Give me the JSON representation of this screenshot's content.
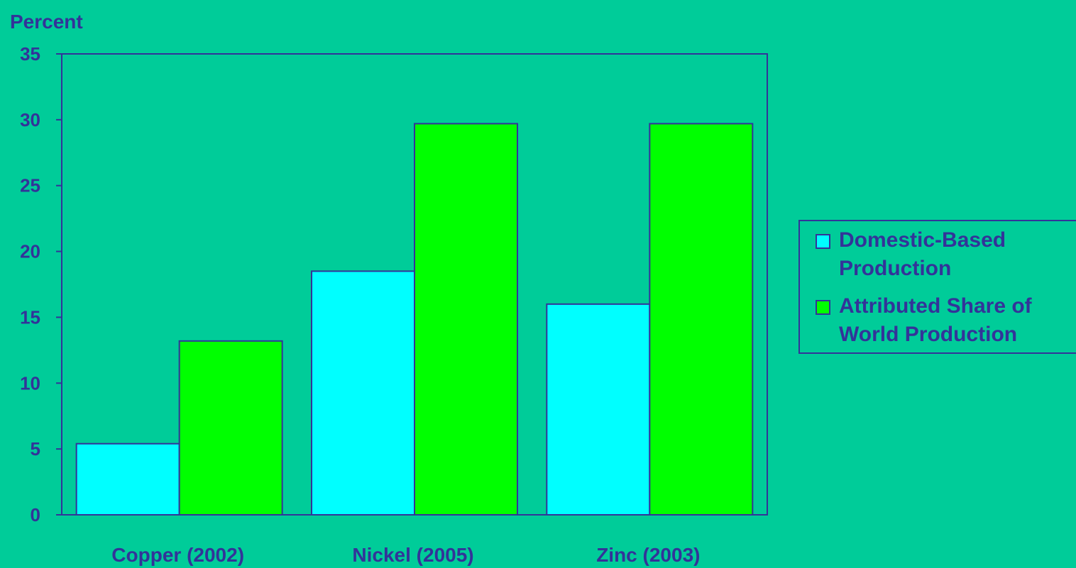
{
  "chart_data": {
    "type": "bar",
    "ylabel": "Percent",
    "xlabel": "",
    "ylim": [
      0,
      35
    ],
    "yticks": [
      "0",
      "5",
      "10",
      "15",
      "20",
      "25",
      "30",
      "35"
    ],
    "categories": [
      "Copper (2002)",
      "Nickel (2005)",
      "Zinc (2003)"
    ],
    "series": [
      {
        "name": "Domestic-Based Production",
        "values": [
          5.4,
          18.5,
          16.0
        ],
        "color": "#00FFFF"
      },
      {
        "name": "Attributed Share of World Production",
        "values": [
          13.2,
          29.7,
          29.7
        ],
        "color": "#00FF00"
      }
    ],
    "legend": {
      "position": "right",
      "entries": [
        {
          "lines": [
            "Domestic-Based",
            "Production"
          ],
          "color": "#00FFFF"
        },
        {
          "lines": [
            "Attributed Share of",
            "World Production"
          ],
          "color": "#00FF00"
        }
      ]
    },
    "grid": false
  },
  "colors": {
    "background": "#00CC99",
    "axis": "#333399",
    "text": "#333399"
  }
}
